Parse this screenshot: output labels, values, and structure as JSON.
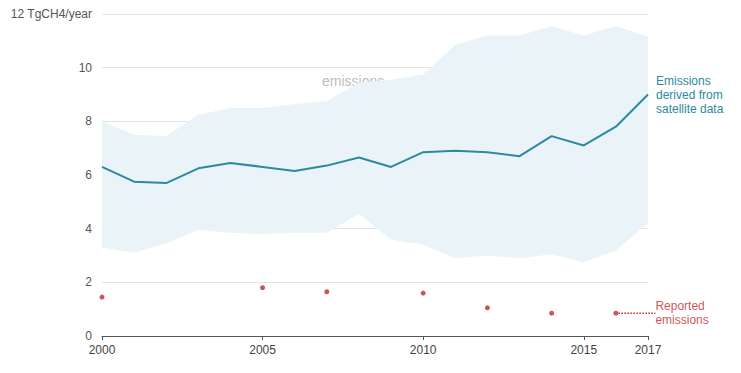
{
  "chart_data": {
    "type": "line",
    "x": [
      2000,
      2001,
      2002,
      2003,
      2004,
      2005,
      2006,
      2007,
      2008,
      2009,
      2010,
      2011,
      2012,
      2013,
      2014,
      2015,
      2016,
      2017
    ],
    "xlim": [
      2000,
      2017
    ],
    "xticks": [
      2000,
      2005,
      2010,
      2015,
      2017
    ],
    "ylim": [
      0,
      12
    ],
    "yticks": [
      0,
      2,
      4,
      6,
      8,
      10,
      {
        "value": 12,
        "label": "12 TgCH4/year"
      }
    ],
    "grid": true,
    "band": {
      "name": "emissions",
      "color": "#eaf3f8",
      "upper": [
        8.0,
        7.5,
        7.45,
        8.25,
        8.5,
        8.5,
        8.65,
        8.75,
        9.45,
        9.55,
        9.75,
        10.85,
        11.2,
        11.2,
        11.55,
        11.2,
        11.55,
        11.15
      ],
      "lower": [
        3.3,
        3.1,
        3.45,
        3.95,
        3.85,
        3.8,
        3.85,
        3.85,
        4.55,
        3.6,
        3.4,
        2.9,
        3.0,
        2.9,
        3.05,
        2.75,
        3.2,
        4.2
      ]
    },
    "series": [
      {
        "name": "Emissions derived from satellite data",
        "type": "line",
        "color": "#2b8a9f",
        "values": [
          6.3,
          5.75,
          5.7,
          6.25,
          6.45,
          6.3,
          6.15,
          6.35,
          6.65,
          6.3,
          6.85,
          6.9,
          6.85,
          6.7,
          7.45,
          7.1,
          7.8,
          9.0
        ]
      },
      {
        "name": "Reported emissions",
        "type": "scatter",
        "color": "#c0282d",
        "line_style": "dotted",
        "x": [
          2000,
          2005,
          2007,
          2010,
          2012,
          2014,
          2016
        ],
        "values": [
          1.45,
          1.8,
          1.65,
          1.6,
          1.05,
          0.85,
          0.85
        ]
      }
    ]
  }
}
